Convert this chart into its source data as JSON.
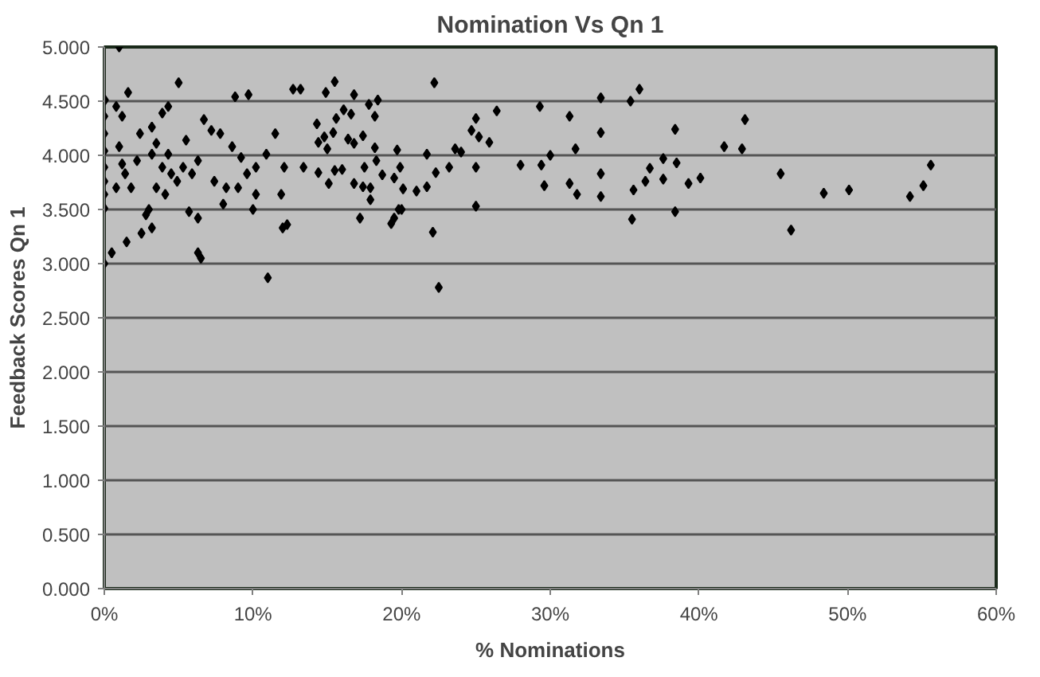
{
  "chart_data": {
    "type": "scatter",
    "title": "Nomination Vs Qn 1",
    "xlabel": "% Nominations",
    "ylabel": "Feedback Scores Qn 1",
    "xlim": [
      0,
      60
    ],
    "ylim": [
      0,
      5
    ],
    "xticks": [
      {
        "value": 0,
        "label": "0%"
      },
      {
        "value": 10,
        "label": "10%"
      },
      {
        "value": 20,
        "label": "20%"
      },
      {
        "value": 30,
        "label": "30%"
      },
      {
        "value": 40,
        "label": "40%"
      },
      {
        "value": 50,
        "label": "50%"
      },
      {
        "value": 60,
        "label": "60%"
      }
    ],
    "yticks": [
      {
        "value": 0,
        "label": "0.000"
      },
      {
        "value": 0.5,
        "label": "0.500"
      },
      {
        "value": 1,
        "label": "1.000"
      },
      {
        "value": 1.5,
        "label": "1.500"
      },
      {
        "value": 2,
        "label": "2.000"
      },
      {
        "value": 2.5,
        "label": "2.500"
      },
      {
        "value": 3,
        "label": "3.000"
      },
      {
        "value": 3.5,
        "label": "3.500"
      },
      {
        "value": 4,
        "label": "4.000"
      },
      {
        "value": 4.5,
        "label": "4.500"
      },
      {
        "value": 5,
        "label": "5.000"
      }
    ],
    "grid": "y",
    "marker": "diamond",
    "series": [
      {
        "color": "#000000",
        "x": [
          45.5,
          48.4,
          50.1,
          54.2,
          55.1,
          55.6,
          46.2,
          29.3,
          31.3,
          33.4,
          33.4,
          35.4,
          36.0,
          38.4,
          43.1,
          41.7,
          42.9,
          30.0,
          29.4,
          31.7,
          29.6,
          31.3,
          31.8,
          33.4,
          33.4,
          35.6,
          36.4,
          36.7,
          37.6,
          37.6,
          38.5,
          39.3,
          40.1,
          35.5,
          38.4,
          15.5,
          14.9,
          16.8,
          17.8,
          18.4,
          22.2,
          18.2,
          16.1,
          16.6,
          15.6,
          14.3,
          14.8,
          15.4,
          14.4,
          15.0,
          16.4,
          17.4,
          16.8,
          18.2,
          19.7,
          21.7,
          25.0,
          26.4,
          24.7,
          25.2,
          25.9,
          23.6,
          24.0,
          23.2,
          22.3,
          25.0,
          28.0,
          18.3,
          15.5,
          14.4,
          16.0,
          17.5,
          18.7,
          19.9,
          19.5,
          15.1,
          16.8,
          17.4,
          17.9,
          20.1,
          21.0,
          21.7,
          17.9,
          25.0,
          19.8,
          19.5,
          17.2,
          22.1,
          19.3,
          1.0,
          5.0,
          0.04,
          0,
          0,
          0,
          0,
          0,
          0,
          0,
          0.8,
          1.6,
          1.2,
          1.0,
          1.2,
          1.4,
          0.8,
          1.8,
          2.4,
          3.2,
          3.9,
          4.3,
          3.5,
          3.2,
          3.9,
          3.5,
          4.1,
          4.9,
          4.5,
          4.3,
          5.3,
          5.9,
          6.3,
          6.7,
          7.2,
          7.8,
          8.8,
          9.7,
          8.6,
          9.2,
          9.6,
          10.2,
          10.9,
          11.5,
          12.1,
          12.7,
          13.2,
          13.4,
          11.9,
          12.3,
          6.3,
          5.7,
          3.2,
          2.8,
          7.4,
          8.2,
          9.0,
          10.2,
          5.5,
          2.2,
          0,
          0.5,
          1.5,
          2.5,
          6.5,
          6.3,
          11,
          12,
          22.5,
          3,
          8,
          10,
          20
        ],
        "values": [
          3.83,
          3.65,
          3.68,
          3.62,
          3.72,
          3.91,
          3.31,
          4.45,
          4.36,
          4.53,
          4.21,
          4.5,
          4.61,
          4.24,
          4.33,
          4.08,
          4.06,
          4.0,
          3.91,
          4.06,
          3.72,
          3.74,
          3.64,
          3.83,
          3.62,
          3.68,
          3.76,
          3.88,
          3.97,
          3.78,
          3.93,
          3.74,
          3.79,
          3.41,
          3.48,
          4.68,
          4.58,
          4.56,
          4.47,
          4.51,
          4.67,
          4.36,
          4.42,
          4.38,
          4.34,
          4.29,
          4.17,
          4.21,
          4.12,
          4.06,
          4.15,
          4.18,
          4.11,
          4.07,
          4.05,
          4.01,
          4.34,
          4.41,
          4.23,
          4.17,
          4.12,
          4.06,
          4.03,
          3.89,
          3.84,
          3.89,
          3.91,
          3.95,
          3.86,
          3.84,
          3.87,
          3.89,
          3.82,
          3.89,
          3.79,
          3.74,
          3.74,
          3.71,
          3.7,
          3.69,
          3.67,
          3.71,
          3.59,
          3.53,
          3.5,
          3.42,
          3.42,
          3.29,
          3.37,
          5.0,
          4.67,
          4.51,
          4.36,
          4.2,
          4.04,
          3.89,
          3.76,
          3.64,
          3.51,
          4.45,
          4.58,
          4.36,
          4.08,
          3.92,
          3.83,
          3.7,
          3.7,
          4.2,
          4.26,
          4.39,
          4.45,
          4.11,
          4.01,
          3.89,
          3.7,
          3.64,
          3.76,
          3.83,
          4.01,
          3.89,
          3.83,
          3.95,
          4.33,
          4.23,
          4.2,
          4.54,
          4.56,
          4.08,
          3.98,
          3.83,
          3.89,
          4.01,
          4.2,
          3.89,
          4.61,
          4.61,
          3.89,
          3.64,
          3.36,
          3.42,
          3.48,
          3.33,
          3.45,
          3.76,
          3.7,
          3.7,
          3.64,
          4.14,
          3.95,
          3.0,
          3.1,
          3.2,
          3.28,
          3.05,
          3.1,
          2.87,
          3.33,
          2.78,
          3.5,
          3.55,
          3.5,
          3.5
        ]
      }
    ]
  }
}
